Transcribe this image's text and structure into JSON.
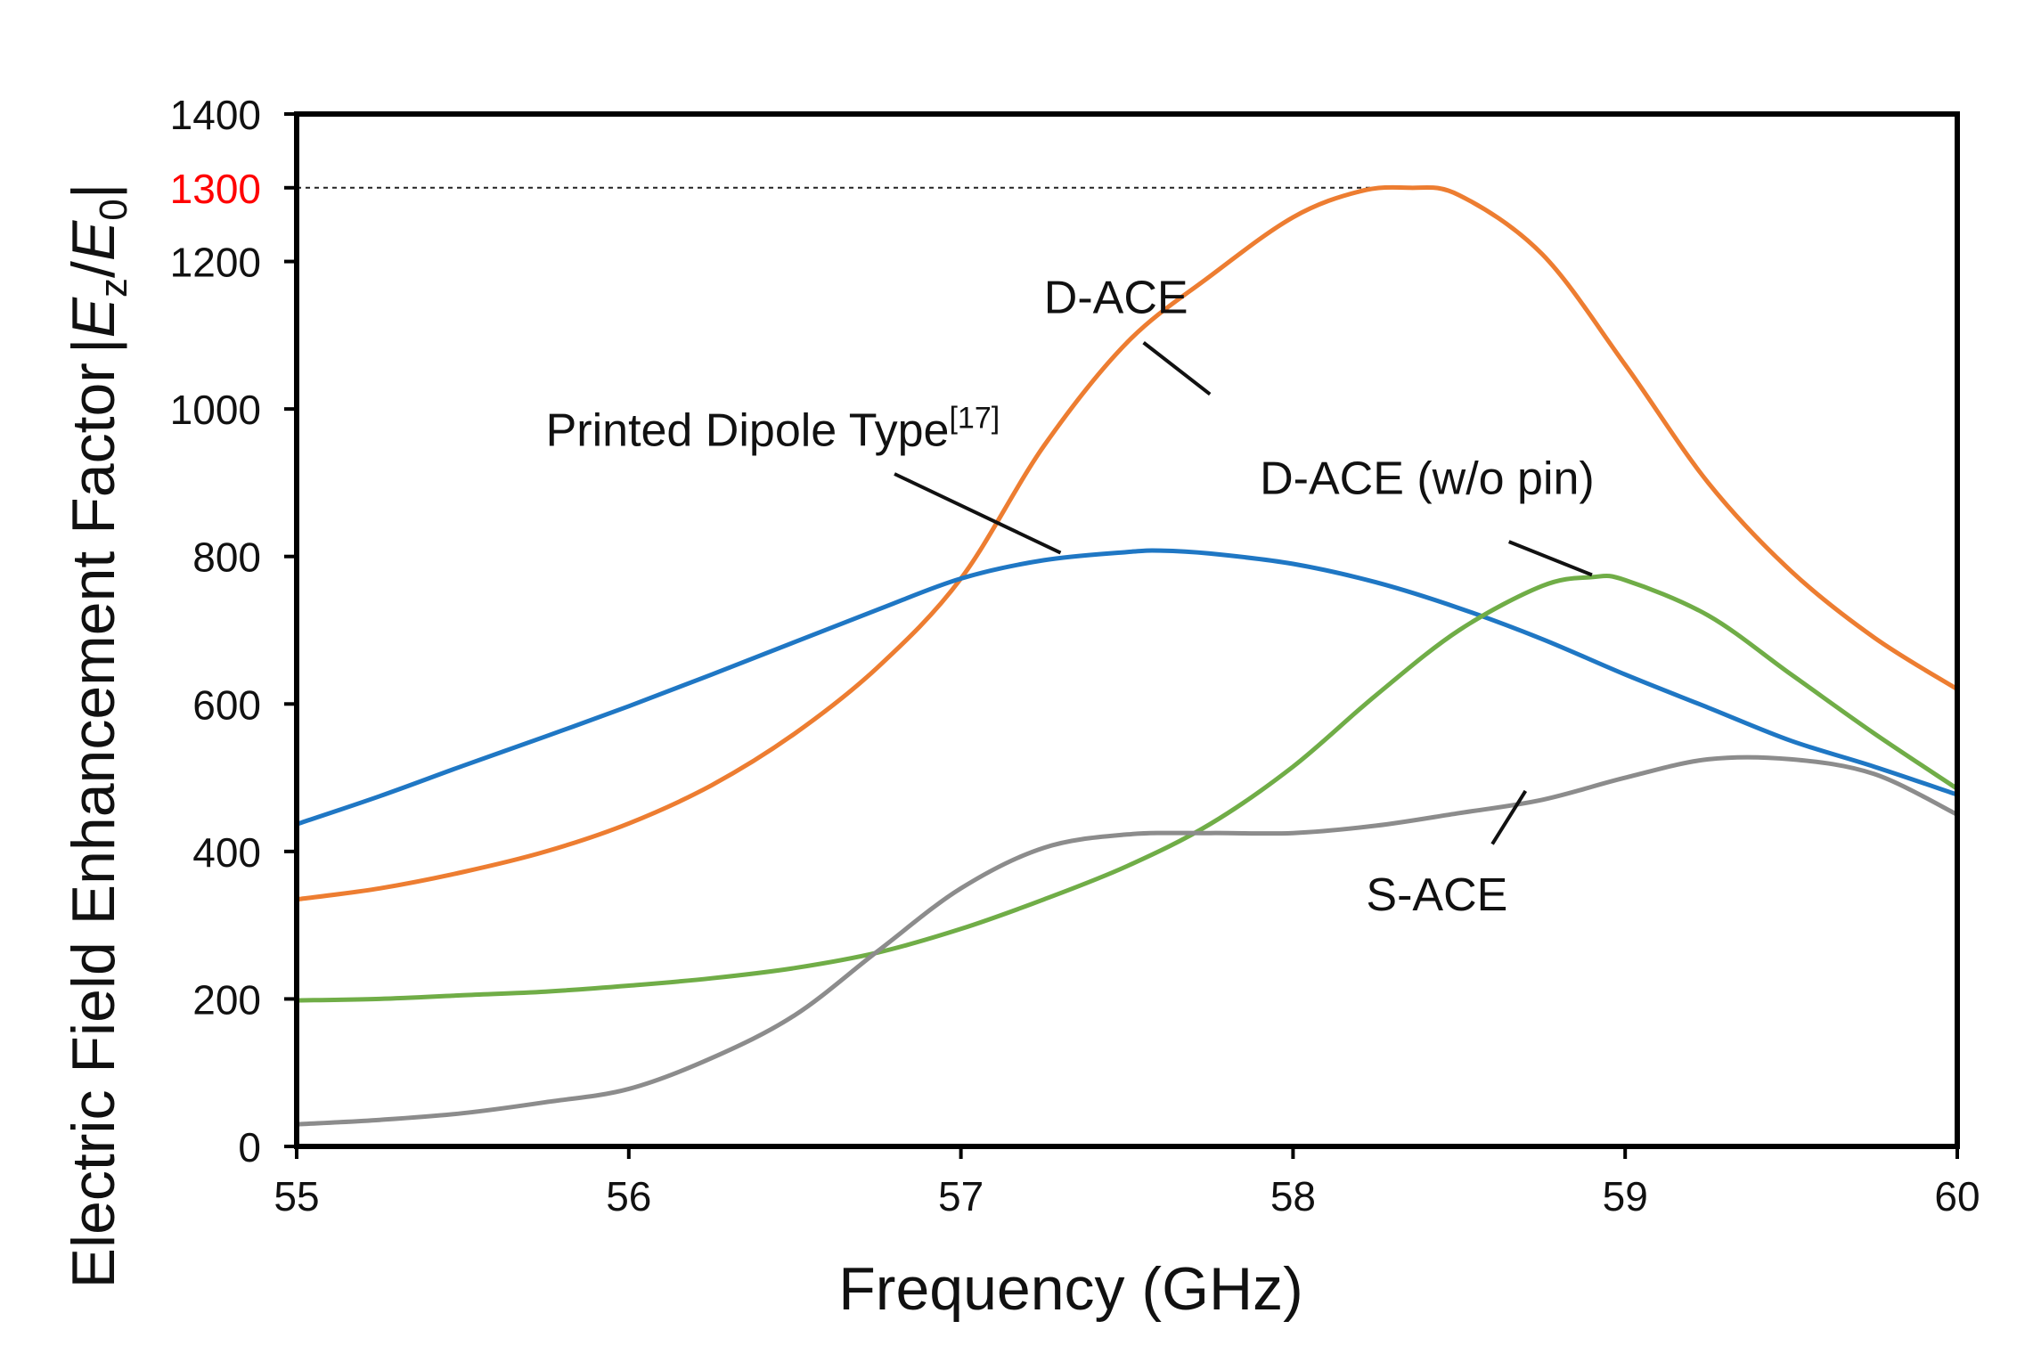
{
  "chart_data": {
    "type": "line",
    "xlabel": "Frequency (GHz)",
    "ylabel": {
      "text": "Electric Field Enhancement Factor",
      "formula": "|Ez/E0|",
      "formula_E": "E",
      "formula_z": "z",
      "formula_slash": "/",
      "formula_E0": "E",
      "formula_0": "0",
      "bar": "|"
    },
    "xlim": [
      55,
      60
    ],
    "ylim": [
      0,
      1400
    ],
    "x_ticks": [
      55,
      56,
      57,
      58,
      59,
      60
    ],
    "y_ticks": [
      0,
      200,
      400,
      600,
      800,
      1000,
      1200,
      1400
    ],
    "highlight": {
      "value": 1300,
      "label": "1300",
      "color": "#ff0000",
      "line_end_x": 58.35
    },
    "grid": false,
    "series": [
      {
        "name": "D-ACE",
        "color": "#ed7d31",
        "x": [
          55,
          55.25,
          55.5,
          55.75,
          56,
          56.25,
          56.5,
          56.75,
          57,
          57.25,
          57.5,
          57.75,
          58,
          58.2,
          58.35,
          58.5,
          58.75,
          59,
          59.25,
          59.5,
          59.75,
          60
        ],
        "y": [
          335,
          350,
          372,
          400,
          438,
          490,
          560,
          650,
          770,
          950,
          1090,
          1180,
          1260,
          1295,
          1300,
          1290,
          1210,
          1060,
          900,
          780,
          690,
          620
        ]
      },
      {
        "name": "Printed Dipole Type",
        "superscript": "[17]",
        "color": "#1f77c4",
        "x": [
          55,
          55.25,
          55.5,
          55.75,
          56,
          56.25,
          56.5,
          56.75,
          57,
          57.25,
          57.5,
          57.6,
          57.75,
          58,
          58.25,
          58.5,
          58.75,
          59,
          59.25,
          59.5,
          59.75,
          60
        ],
        "y": [
          437,
          475,
          516,
          556,
          597,
          640,
          684,
          728,
          770,
          795,
          806,
          808,
          804,
          790,
          765,
          730,
          688,
          640,
          595,
          550,
          515,
          477
        ]
      },
      {
        "name": "D-ACE (w/o pin)",
        "color": "#70ad47",
        "x": [
          55,
          55.25,
          55.5,
          55.75,
          56,
          56.25,
          56.5,
          56.75,
          57,
          57.25,
          57.5,
          57.75,
          58,
          58.25,
          58.5,
          58.75,
          58.9,
          59,
          59.25,
          59.5,
          59.75,
          60
        ],
        "y": [
          198,
          200,
          205,
          210,
          218,
          228,
          242,
          263,
          295,
          335,
          380,
          437,
          515,
          612,
          700,
          760,
          772,
          768,
          720,
          640,
          560,
          485
        ]
      },
      {
        "name": "S-ACE",
        "color": "#8c8c8c",
        "x": [
          55,
          55.25,
          55.5,
          55.75,
          56,
          56.25,
          56.5,
          56.75,
          57,
          57.25,
          57.5,
          57.75,
          58,
          58.25,
          58.5,
          58.75,
          59,
          59.25,
          59.5,
          59.75,
          60
        ],
        "y": [
          30,
          36,
          45,
          60,
          78,
          120,
          178,
          265,
          350,
          405,
          423,
          425,
          425,
          435,
          452,
          470,
          500,
          525,
          525,
          505,
          450
        ]
      }
    ],
    "annotations": [
      {
        "series": "D-ACE",
        "text": "D-ACE",
        "label_x": 57.25,
        "label_y": 1130,
        "tail_x": 57.55,
        "tail_y": 1090,
        "point_x": 57.75,
        "point_y": 1020
      },
      {
        "series": "Printed Dipole Type",
        "text": "Printed Dipole Type",
        "superscript": "[17]",
        "label_x": 55.75,
        "label_y": 950,
        "tail_x": 56.8,
        "tail_y": 912,
        "point_x": 57.3,
        "point_y": 805
      },
      {
        "series": "D-ACE (w/o pin)",
        "text": "D-ACE (w/o pin)",
        "label_x": 57.9,
        "label_y": 885,
        "tail_x": 58.65,
        "tail_y": 820,
        "point_x": 58.9,
        "point_y": 775
      },
      {
        "series": "S-ACE",
        "text": "S-ACE",
        "label_x": 58.22,
        "label_y": 320,
        "tail_x": 58.6,
        "tail_y": 410,
        "point_x": 58.7,
        "point_y": 482
      }
    ]
  }
}
